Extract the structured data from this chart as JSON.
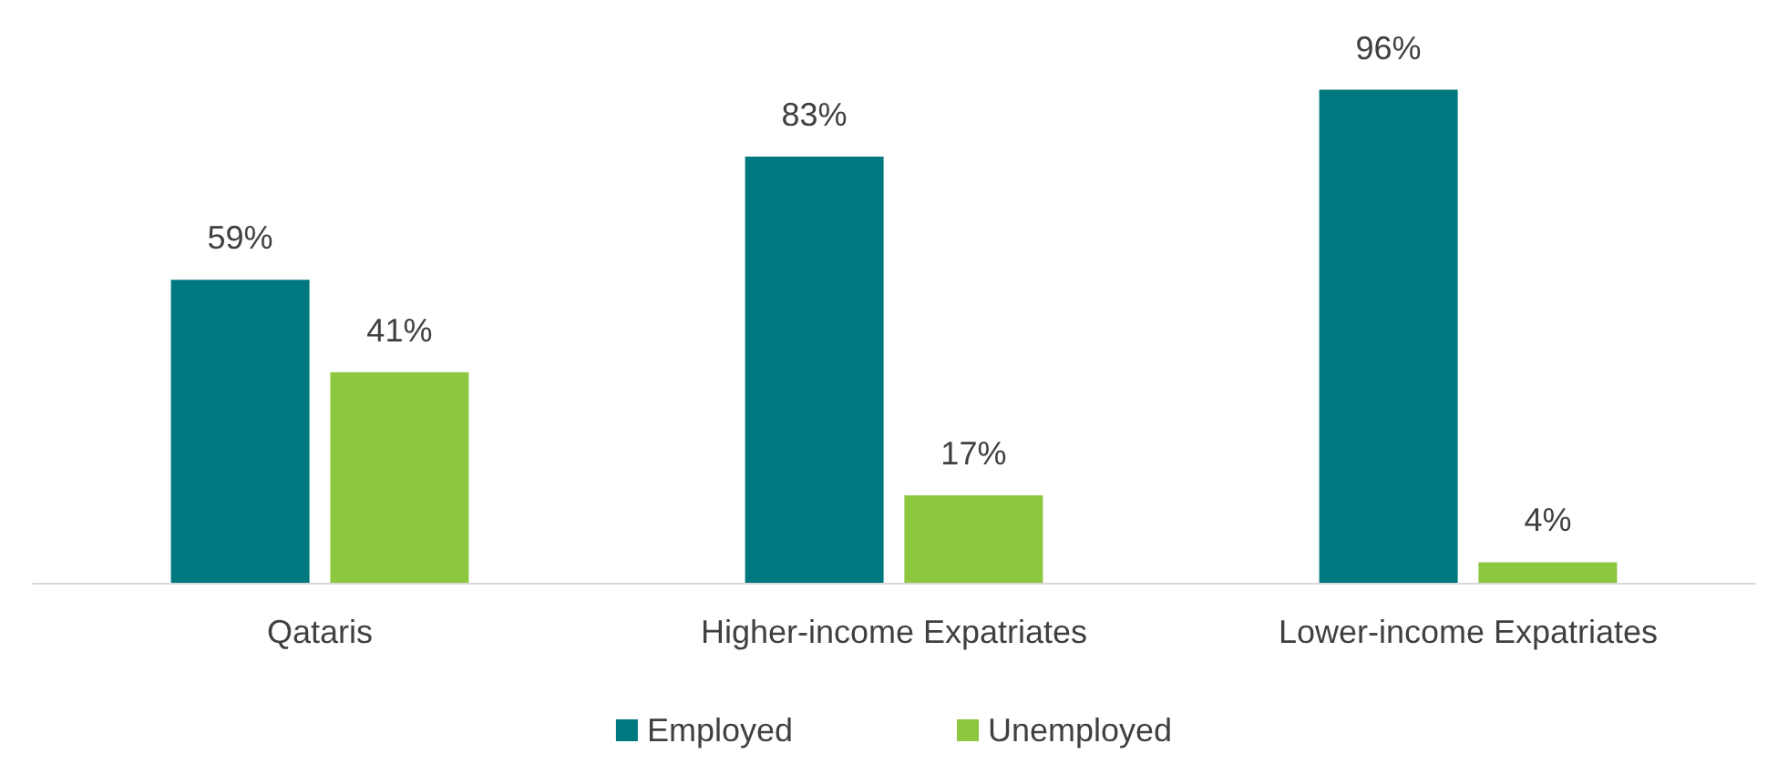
{
  "chart_data": {
    "type": "bar",
    "categories": [
      "Qataris",
      "Higher-income Expatriates",
      "Lower-income Expatriates"
    ],
    "series": [
      {
        "name": "Employed",
        "color": "#00787f",
        "values": [
          59,
          83,
          96
        ],
        "value_labels": [
          "59%",
          "83%",
          "96%"
        ]
      },
      {
        "name": "Unemployed",
        "color": "#8dc63f",
        "values": [
          41,
          17,
          4
        ],
        "value_labels": [
          "41%",
          "17%",
          "4%"
        ]
      }
    ],
    "legend": "bottom"
  }
}
